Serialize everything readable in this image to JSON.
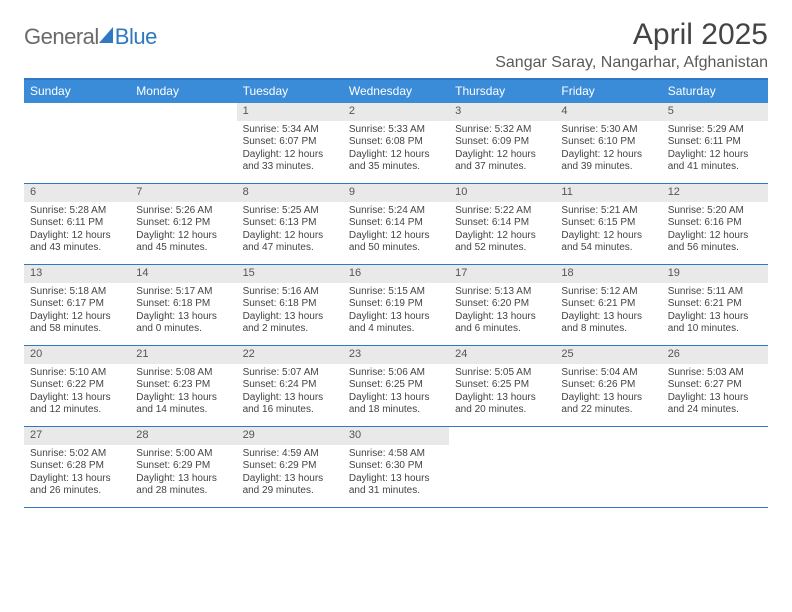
{
  "brand": {
    "part1": "General",
    "part2": "Blue"
  },
  "title": "April 2025",
  "location": "Sangar Saray, Nangarhar, Afghanistan",
  "colors": {
    "accent": "#2f78c2",
    "header_bg": "#3a8bd8",
    "daynum_bg": "#e9e9e9",
    "text": "#444444",
    "page_bg": "#ffffff"
  },
  "typography": {
    "title_fontsize": 30,
    "location_fontsize": 16,
    "dow_fontsize": 12,
    "cell_fontsize": 10
  },
  "days_of_week": [
    "Sunday",
    "Monday",
    "Tuesday",
    "Wednesday",
    "Thursday",
    "Friday",
    "Saturday"
  ],
  "layout": {
    "first_weekday_index": 2,
    "days_in_month": 30,
    "weeks": 5
  },
  "days": [
    {
      "n": 1,
      "sunrise": "5:34 AM",
      "sunset": "6:07 PM",
      "daylight_h": 12,
      "daylight_m": 33
    },
    {
      "n": 2,
      "sunrise": "5:33 AM",
      "sunset": "6:08 PM",
      "daylight_h": 12,
      "daylight_m": 35
    },
    {
      "n": 3,
      "sunrise": "5:32 AM",
      "sunset": "6:09 PM",
      "daylight_h": 12,
      "daylight_m": 37
    },
    {
      "n": 4,
      "sunrise": "5:30 AM",
      "sunset": "6:10 PM",
      "daylight_h": 12,
      "daylight_m": 39
    },
    {
      "n": 5,
      "sunrise": "5:29 AM",
      "sunset": "6:11 PM",
      "daylight_h": 12,
      "daylight_m": 41
    },
    {
      "n": 6,
      "sunrise": "5:28 AM",
      "sunset": "6:11 PM",
      "daylight_h": 12,
      "daylight_m": 43
    },
    {
      "n": 7,
      "sunrise": "5:26 AM",
      "sunset": "6:12 PM",
      "daylight_h": 12,
      "daylight_m": 45
    },
    {
      "n": 8,
      "sunrise": "5:25 AM",
      "sunset": "6:13 PM",
      "daylight_h": 12,
      "daylight_m": 47
    },
    {
      "n": 9,
      "sunrise": "5:24 AM",
      "sunset": "6:14 PM",
      "daylight_h": 12,
      "daylight_m": 50
    },
    {
      "n": 10,
      "sunrise": "5:22 AM",
      "sunset": "6:14 PM",
      "daylight_h": 12,
      "daylight_m": 52
    },
    {
      "n": 11,
      "sunrise": "5:21 AM",
      "sunset": "6:15 PM",
      "daylight_h": 12,
      "daylight_m": 54
    },
    {
      "n": 12,
      "sunrise": "5:20 AM",
      "sunset": "6:16 PM",
      "daylight_h": 12,
      "daylight_m": 56
    },
    {
      "n": 13,
      "sunrise": "5:18 AM",
      "sunset": "6:17 PM",
      "daylight_h": 12,
      "daylight_m": 58
    },
    {
      "n": 14,
      "sunrise": "5:17 AM",
      "sunset": "6:18 PM",
      "daylight_h": 13,
      "daylight_m": 0
    },
    {
      "n": 15,
      "sunrise": "5:16 AM",
      "sunset": "6:18 PM",
      "daylight_h": 13,
      "daylight_m": 2
    },
    {
      "n": 16,
      "sunrise": "5:15 AM",
      "sunset": "6:19 PM",
      "daylight_h": 13,
      "daylight_m": 4
    },
    {
      "n": 17,
      "sunrise": "5:13 AM",
      "sunset": "6:20 PM",
      "daylight_h": 13,
      "daylight_m": 6
    },
    {
      "n": 18,
      "sunrise": "5:12 AM",
      "sunset": "6:21 PM",
      "daylight_h": 13,
      "daylight_m": 8
    },
    {
      "n": 19,
      "sunrise": "5:11 AM",
      "sunset": "6:21 PM",
      "daylight_h": 13,
      "daylight_m": 10
    },
    {
      "n": 20,
      "sunrise": "5:10 AM",
      "sunset": "6:22 PM",
      "daylight_h": 13,
      "daylight_m": 12
    },
    {
      "n": 21,
      "sunrise": "5:08 AM",
      "sunset": "6:23 PM",
      "daylight_h": 13,
      "daylight_m": 14
    },
    {
      "n": 22,
      "sunrise": "5:07 AM",
      "sunset": "6:24 PM",
      "daylight_h": 13,
      "daylight_m": 16
    },
    {
      "n": 23,
      "sunrise": "5:06 AM",
      "sunset": "6:25 PM",
      "daylight_h": 13,
      "daylight_m": 18
    },
    {
      "n": 24,
      "sunrise": "5:05 AM",
      "sunset": "6:25 PM",
      "daylight_h": 13,
      "daylight_m": 20
    },
    {
      "n": 25,
      "sunrise": "5:04 AM",
      "sunset": "6:26 PM",
      "daylight_h": 13,
      "daylight_m": 22
    },
    {
      "n": 26,
      "sunrise": "5:03 AM",
      "sunset": "6:27 PM",
      "daylight_h": 13,
      "daylight_m": 24
    },
    {
      "n": 27,
      "sunrise": "5:02 AM",
      "sunset": "6:28 PM",
      "daylight_h": 13,
      "daylight_m": 26
    },
    {
      "n": 28,
      "sunrise": "5:00 AM",
      "sunset": "6:29 PM",
      "daylight_h": 13,
      "daylight_m": 28
    },
    {
      "n": 29,
      "sunrise": "4:59 AM",
      "sunset": "6:29 PM",
      "daylight_h": 13,
      "daylight_m": 29
    },
    {
      "n": 30,
      "sunrise": "4:58 AM",
      "sunset": "6:30 PM",
      "daylight_h": 13,
      "daylight_m": 31
    }
  ],
  "labels": {
    "sunrise_prefix": "Sunrise: ",
    "sunset_prefix": "Sunset: ",
    "daylight_prefix": "Daylight: ",
    "hours_word": " hours",
    "and_word": "and ",
    "minutes_word": " minutes."
  }
}
